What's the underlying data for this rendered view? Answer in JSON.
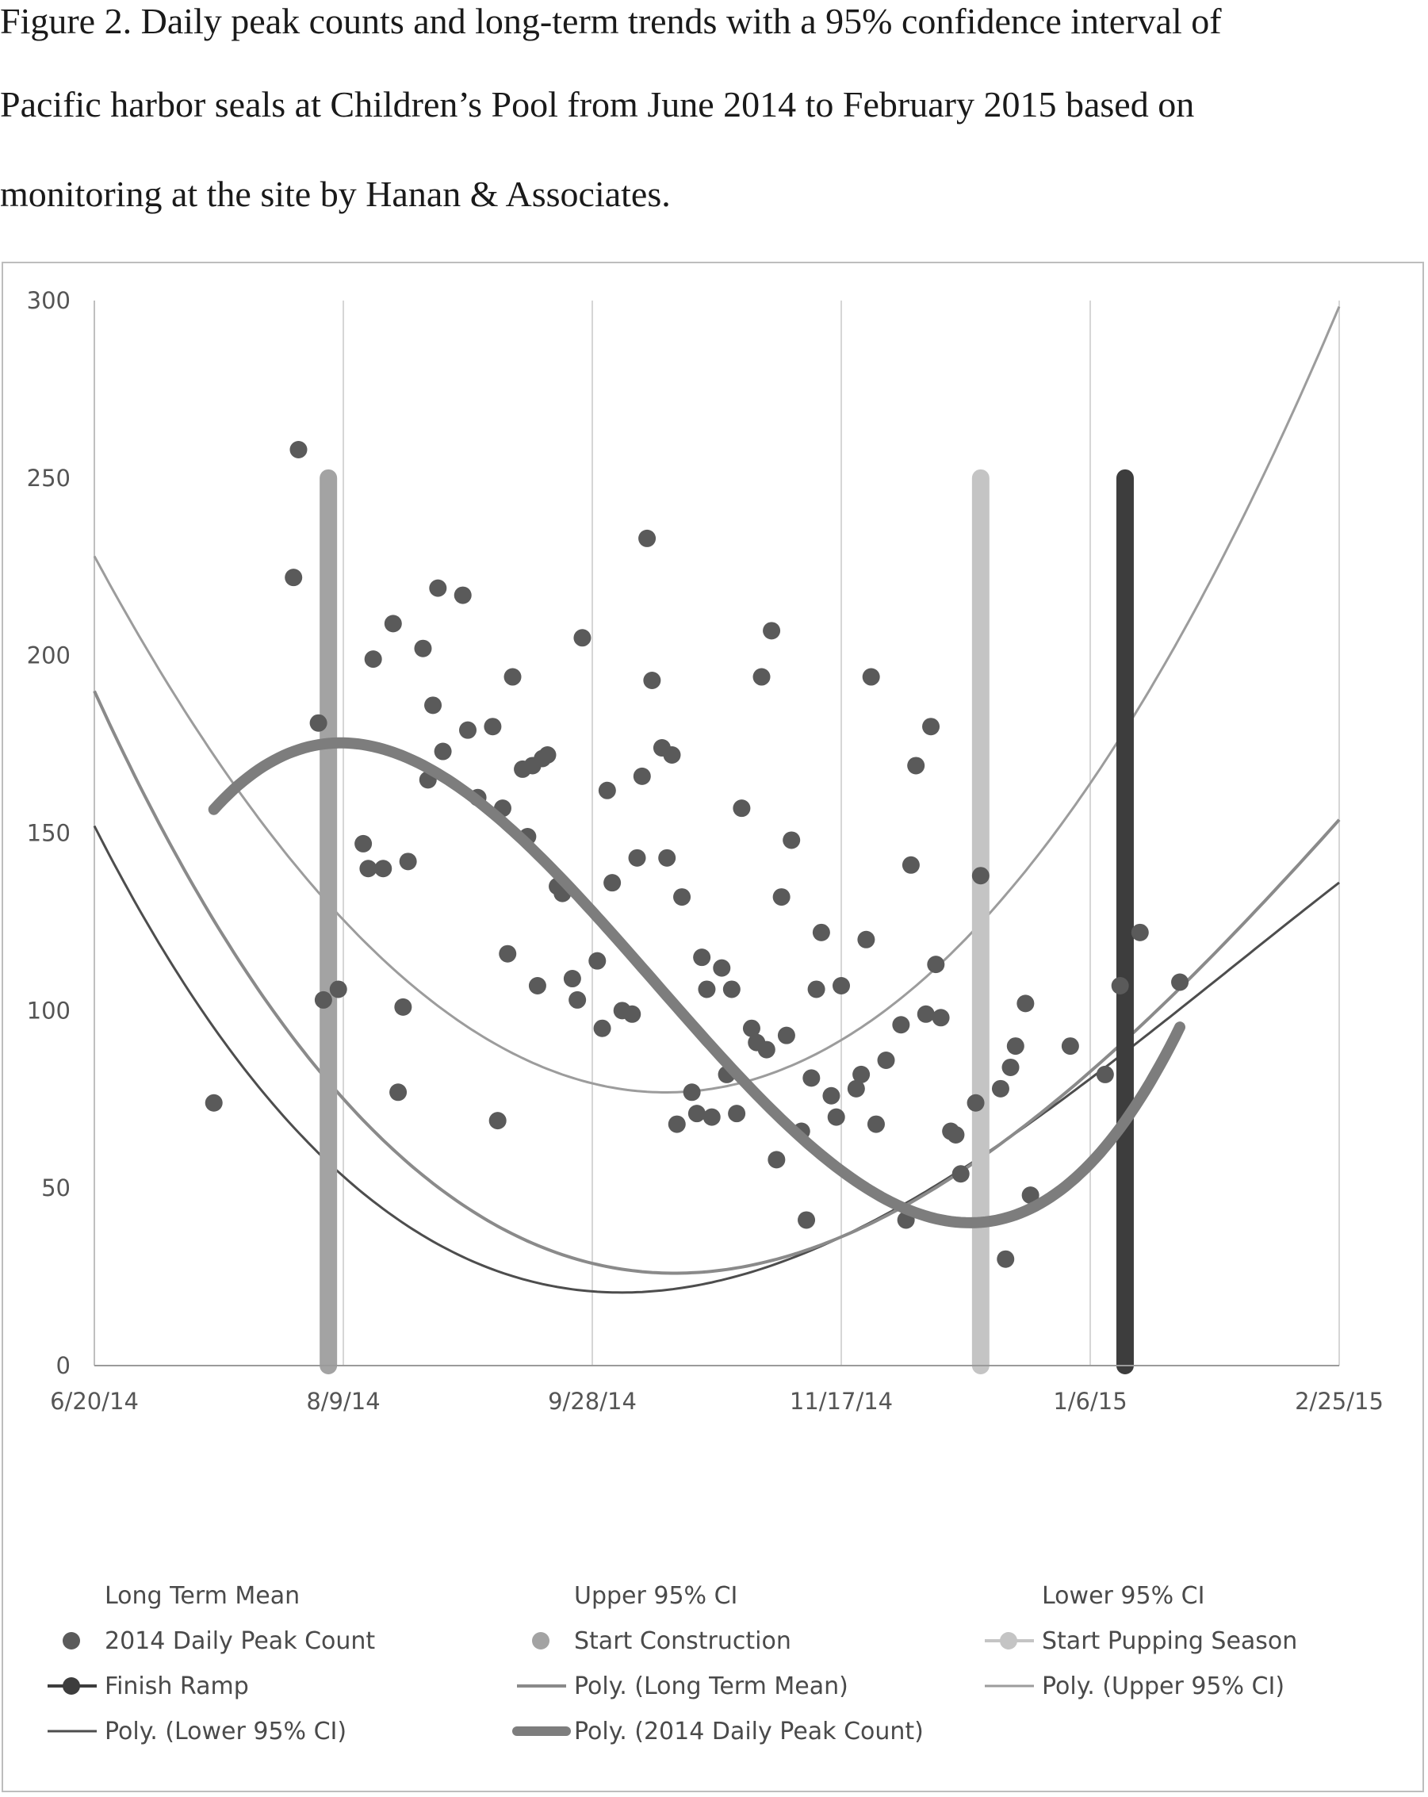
{
  "caption": {
    "line1": "Figure 2.  Daily peak counts and long-term trends with a 95% confidence interval of",
    "line2": "Pacific harbor seals at Children’s Pool from June 2014 to February 2015 based on",
    "line3": "monitoring at the site by Hanan & Associates."
  },
  "chart_data": {
    "type": "scatter",
    "title": "",
    "xlabel": "",
    "ylabel": "",
    "x_axis": {
      "type": "date",
      "ticks": [
        "6/20/14",
        "8/9/14",
        "9/28/14",
        "11/17/14",
        "1/6/15",
        "2/25/15"
      ],
      "range_days": [
        0,
        250
      ],
      "tick_step_days": 50
    },
    "ylim": [
      0,
      300
    ],
    "y_ticks": [
      0,
      50,
      100,
      150,
      200,
      250,
      300
    ],
    "grid": "vertical",
    "colors": {
      "points": "#5a5a5a",
      "long_term_mean": "#8a8a8a",
      "upper_ci": "#9c9c9c",
      "lower_ci": "#4d4d4d",
      "peak_trend": "#7d7d7d",
      "start_construction": "#a3a3a3",
      "start_pupping": "#c4c4c4",
      "finish_ramp": "#3d3d3d"
    },
    "daily_peak_count": {
      "name": "2014 Daily Peak Count",
      "points": [
        [
          24,
          74
        ],
        [
          41,
          258
        ],
        [
          40,
          222
        ],
        [
          45,
          181
        ],
        [
          46,
          103
        ],
        [
          49,
          106
        ],
        [
          54,
          147
        ],
        [
          55,
          140
        ],
        [
          58,
          140
        ],
        [
          56,
          199
        ],
        [
          60,
          209
        ],
        [
          61,
          77
        ],
        [
          62,
          101
        ],
        [
          63,
          142
        ],
        [
          66,
          202
        ],
        [
          67,
          165
        ],
        [
          68,
          186
        ],
        [
          69,
          219
        ],
        [
          70,
          173
        ],
        [
          74,
          217
        ],
        [
          75,
          179
        ],
        [
          77,
          160
        ],
        [
          80,
          180
        ],
        [
          81,
          69
        ],
        [
          82,
          157
        ],
        [
          83,
          116
        ],
        [
          84,
          194
        ],
        [
          86,
          168
        ],
        [
          87,
          149
        ],
        [
          88,
          169
        ],
        [
          89,
          107
        ],
        [
          90,
          171
        ],
        [
          91,
          172
        ],
        [
          93,
          135
        ],
        [
          94,
          133
        ],
        [
          96,
          109
        ],
        [
          97,
          103
        ],
        [
          98,
          205
        ],
        [
          101,
          114
        ],
        [
          102,
          95
        ],
        [
          103,
          162
        ],
        [
          104,
          136
        ],
        [
          106,
          100
        ],
        [
          108,
          99
        ],
        [
          109,
          143
        ],
        [
          110,
          166
        ],
        [
          111,
          233
        ],
        [
          112,
          193
        ],
        [
          114,
          174
        ],
        [
          115,
          143
        ],
        [
          116,
          172
        ],
        [
          117,
          68
        ],
        [
          118,
          132
        ],
        [
          120,
          77
        ],
        [
          121,
          71
        ],
        [
          122,
          115
        ],
        [
          123,
          106
        ],
        [
          124,
          70
        ],
        [
          126,
          112
        ],
        [
          127,
          82
        ],
        [
          128,
          106
        ],
        [
          129,
          71
        ],
        [
          130,
          157
        ],
        [
          132,
          95
        ],
        [
          133,
          91
        ],
        [
          134,
          194
        ],
        [
          135,
          89
        ],
        [
          136,
          207
        ],
        [
          137,
          58
        ],
        [
          138,
          132
        ],
        [
          139,
          93
        ],
        [
          140,
          148
        ],
        [
          142,
          66
        ],
        [
          143,
          41
        ],
        [
          144,
          81
        ],
        [
          145,
          106
        ],
        [
          146,
          122
        ],
        [
          148,
          76
        ],
        [
          149,
          70
        ],
        [
          150,
          107
        ],
        [
          153,
          78
        ],
        [
          154,
          82
        ],
        [
          155,
          120
        ],
        [
          156,
          194
        ],
        [
          157,
          68
        ],
        [
          159,
          86
        ],
        [
          162,
          96
        ],
        [
          163,
          41
        ],
        [
          164,
          141
        ],
        [
          165,
          169
        ],
        [
          167,
          99
        ],
        [
          168,
          180
        ],
        [
          169,
          113
        ],
        [
          170,
          98
        ],
        [
          172,
          66
        ],
        [
          173,
          65
        ],
        [
          174,
          54
        ],
        [
          177,
          74
        ],
        [
          178,
          138
        ],
        [
          182,
          78
        ],
        [
          183,
          30
        ],
        [
          184,
          84
        ],
        [
          185,
          90
        ],
        [
          187,
          102
        ],
        [
          188,
          48
        ],
        [
          196,
          90
        ],
        [
          203,
          82
        ],
        [
          206,
          107
        ],
        [
          210,
          122
        ],
        [
          218,
          108
        ]
      ]
    },
    "events": [
      {
        "name": "Start Construction",
        "day": 47,
        "ymax": 250
      },
      {
        "name": "Start Pupping Season",
        "day": 178,
        "ymax": 250
      },
      {
        "name": "Finish Ramp",
        "day": 207,
        "ymax": 250
      }
    ],
    "trendlines": [
      {
        "name": "Poly. (Long Term Mean)",
        "coef": [
          190,
          -3.08,
          0.01664,
          -1.96e-05
        ]
      },
      {
        "name": "Poly. (Upper 95% CI)",
        "coef": [
          228,
          -2.6,
          0.0109,
          2.5e-06
        ]
      },
      {
        "name": "Poly. (Lower 95% CI)",
        "coef": [
          152,
          -2.76,
          0.01696,
          -2.47e-05
        ]
      },
      {
        "name": "Poly. (2014 Daily Peak Count)",
        "range": [
          24,
          218
        ],
        "coef": [
          96.9,
          3.5,
          -0.0453,
          0.000134
        ]
      }
    ],
    "legend": [
      "Long Term Mean",
      "Upper 95% CI",
      "Lower 95% CI",
      "2014 Daily Peak Count",
      "Start Construction",
      "Start Pupping Season",
      "Finish Ramp",
      "Poly. (Long Term Mean)",
      "Poly. (Upper 95% CI)",
      "Poly. (Lower 95% CI)",
      "Poly. (2014 Daily Peak Count)"
    ],
    "legend_position": "bottom"
  }
}
